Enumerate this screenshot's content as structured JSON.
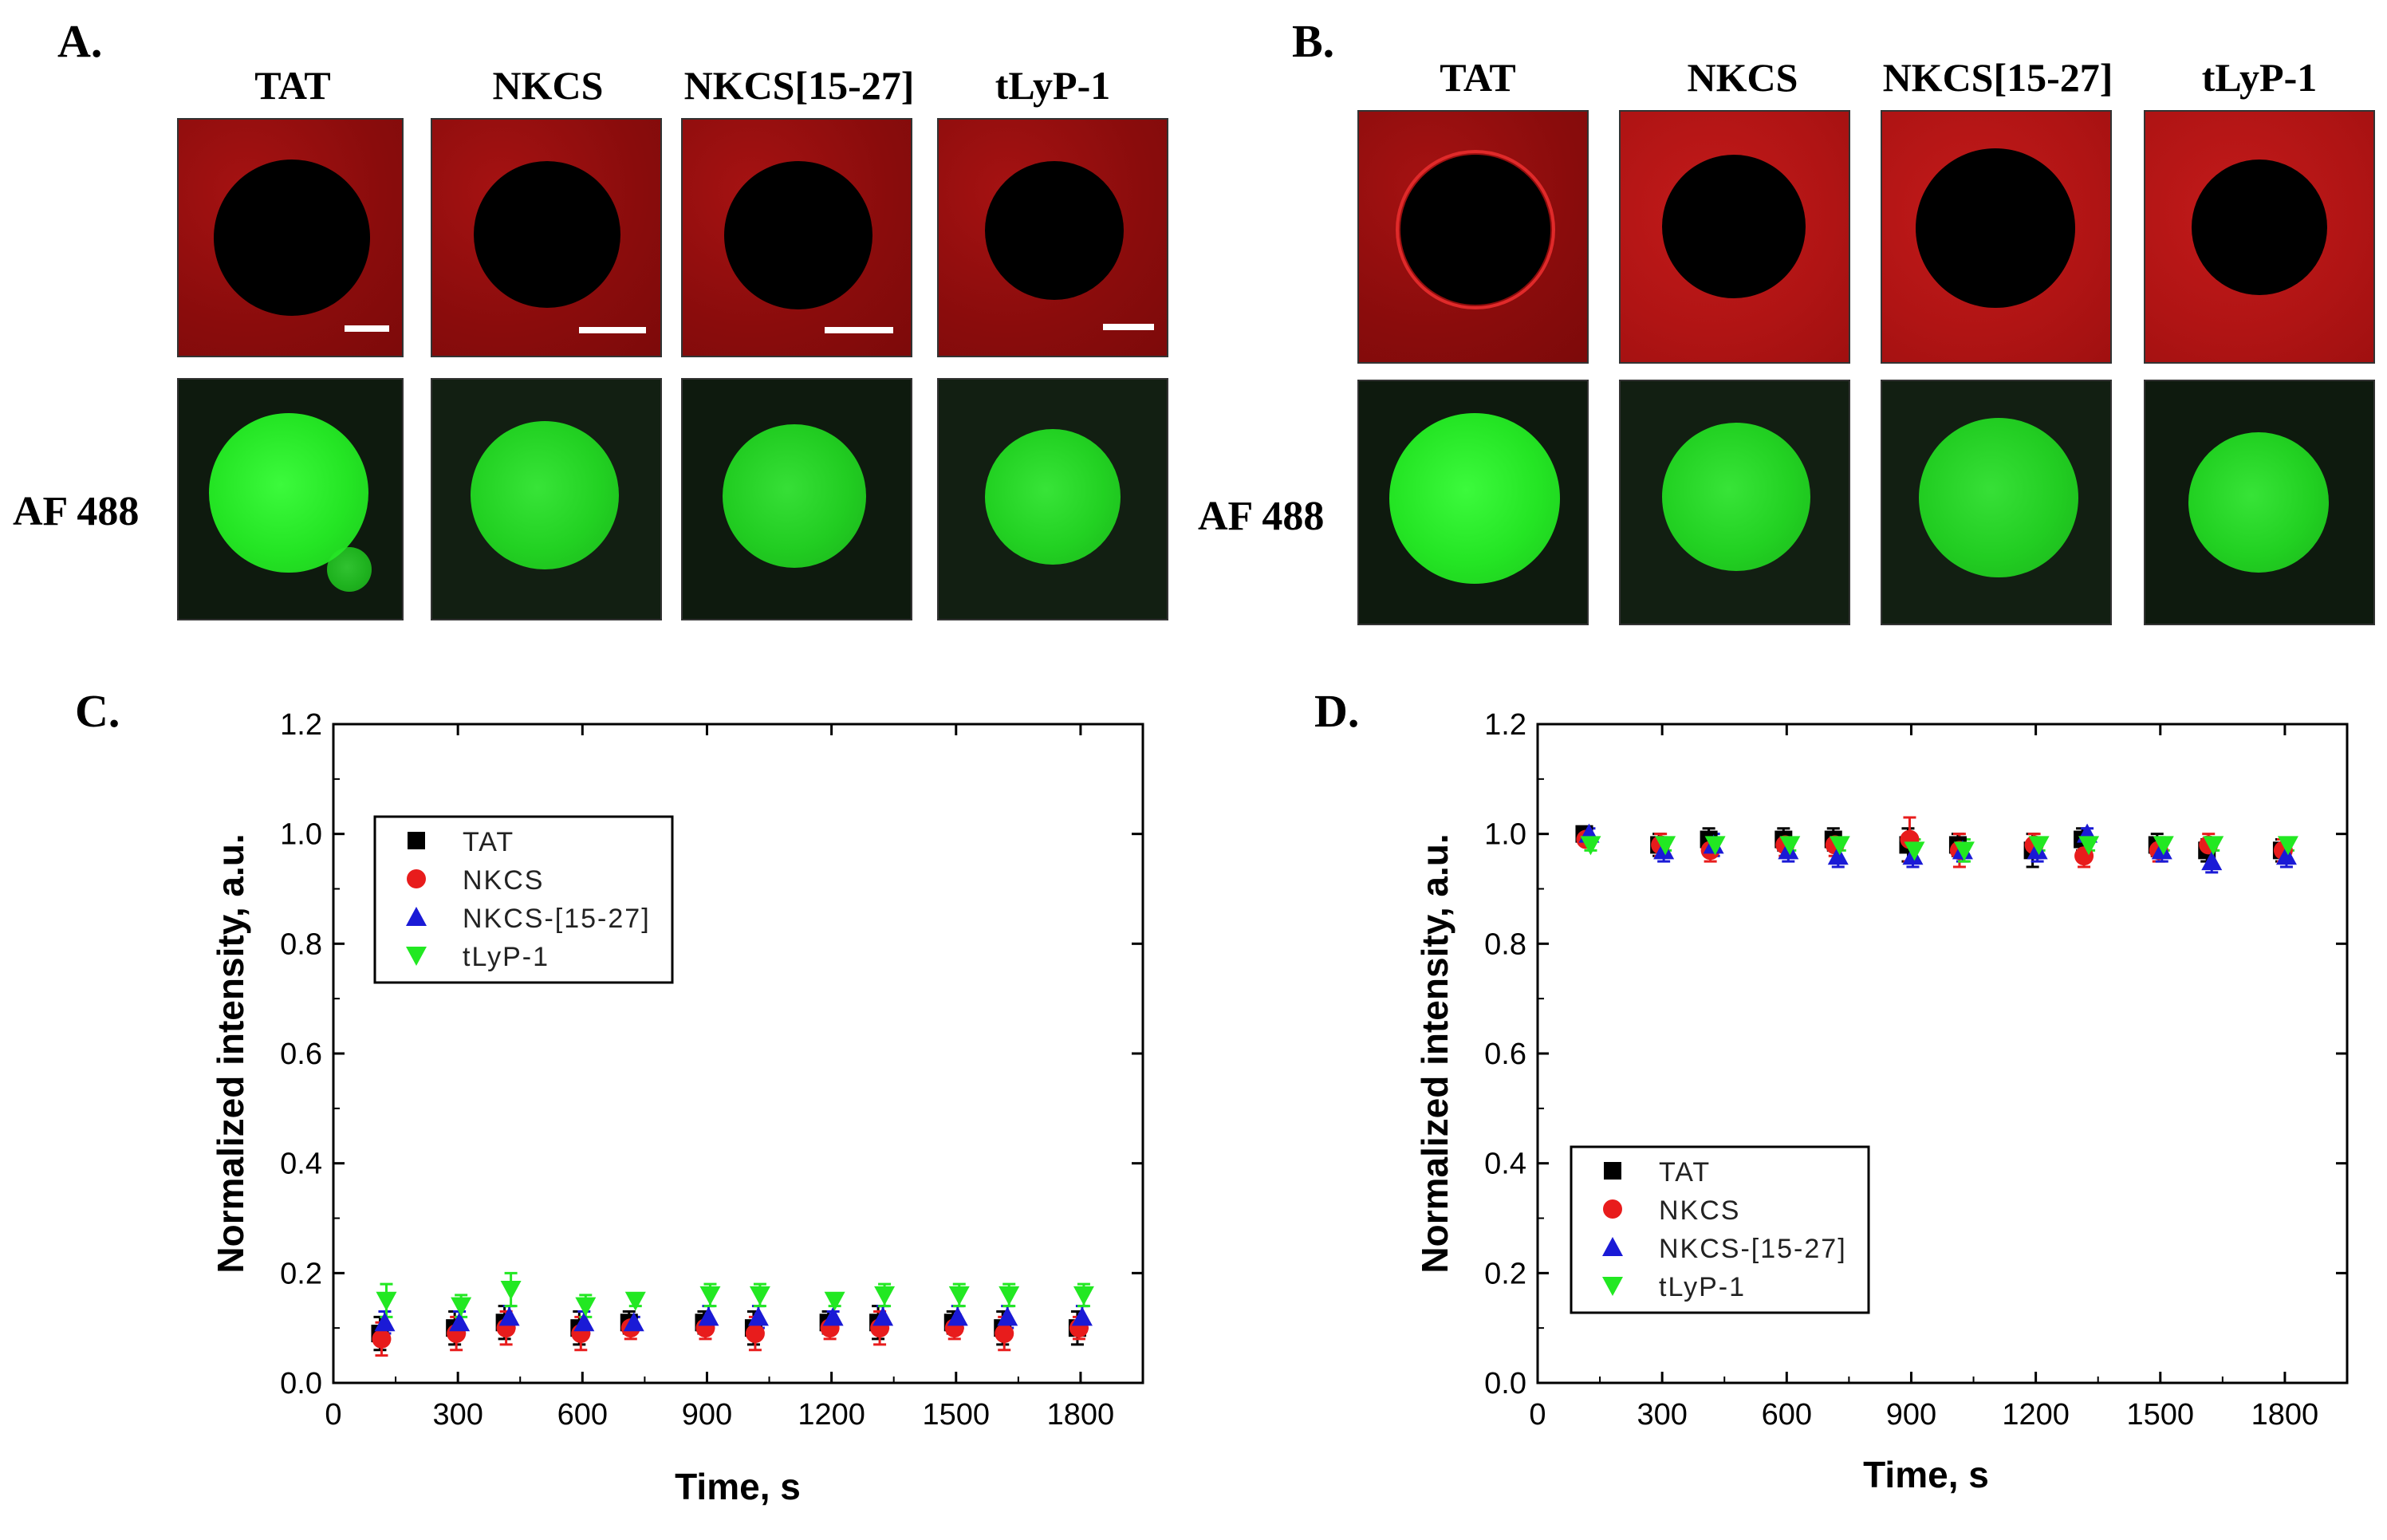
{
  "panel_labels": {
    "a": "A.",
    "b": "B.",
    "c": "C.",
    "d": "D."
  },
  "peptides": [
    "TAT",
    "NKCS",
    "NKCS[15-27]",
    "tLyP-1"
  ],
  "green_channel_label": "AF 488",
  "colors": {
    "red_channel": "#9b0f0f",
    "green_channel": "#27e527",
    "tat": "#000000",
    "nkcs": "#e81c1c",
    "nkcs1527": "#1a1ad6",
    "tlyp1": "#22e822"
  },
  "chart_data": [
    {
      "panel": "C.",
      "type": "scatter",
      "xlabel": "Time, s",
      "ylabel": "Normalized intensity, a.u.",
      "xlim": [
        0,
        1950
      ],
      "ylim": [
        0.0,
        1.2
      ],
      "xticks": [
        0,
        300,
        600,
        900,
        1200,
        1500,
        1800
      ],
      "yticks": [
        0.0,
        0.2,
        0.4,
        0.6,
        0.8,
        1.0,
        1.2
      ],
      "xtick_labels": [
        "0",
        "300",
        "600",
        "900",
        "1200",
        "1500",
        "1800"
      ],
      "ytick_labels": [
        "0.0",
        "0.2",
        "0.4",
        "0.6",
        "0.8",
        "1.0",
        "1.2"
      ],
      "legend_position": "upper-left",
      "x": [
        120,
        300,
        420,
        600,
        720,
        900,
        1020,
        1200,
        1320,
        1500,
        1620,
        1800
      ],
      "series": [
        {
          "name": "TAT",
          "marker": "square",
          "color": "#000000",
          "values": [
            0.09,
            0.1,
            0.11,
            0.1,
            0.11,
            0.11,
            0.1,
            0.11,
            0.11,
            0.11,
            0.1,
            0.1
          ],
          "errors": [
            0.03,
            0.03,
            0.03,
            0.03,
            0.02,
            0.02,
            0.03,
            0.02,
            0.03,
            0.02,
            0.03,
            0.03
          ]
        },
        {
          "name": "NKCS",
          "marker": "circle",
          "color": "#e81c1c",
          "values": [
            0.08,
            0.09,
            0.1,
            0.09,
            0.1,
            0.1,
            0.09,
            0.1,
            0.1,
            0.1,
            0.09,
            0.1
          ],
          "errors": [
            0.03,
            0.03,
            0.03,
            0.03,
            0.02,
            0.02,
            0.03,
            0.02,
            0.03,
            0.02,
            0.03,
            0.02
          ]
        },
        {
          "name": "NKCS-[15-27]",
          "marker": "triangle-up",
          "color": "#1a1ad6",
          "values": [
            0.11,
            0.11,
            0.12,
            0.11,
            0.11,
            0.12,
            0.12,
            0.12,
            0.12,
            0.12,
            0.12,
            0.12
          ],
          "errors": [
            0.02,
            0.02,
            0.02,
            0.02,
            0.01,
            0.02,
            0.02,
            0.01,
            0.02,
            0.02,
            0.02,
            0.02
          ]
        },
        {
          "name": "tLyP-1",
          "marker": "triangle-down",
          "color": "#22e822",
          "values": [
            0.15,
            0.14,
            0.17,
            0.14,
            0.15,
            0.16,
            0.16,
            0.15,
            0.16,
            0.16,
            0.16,
            0.16
          ],
          "errors": [
            0.03,
            0.02,
            0.03,
            0.02,
            0.01,
            0.02,
            0.02,
            0.01,
            0.02,
            0.02,
            0.02,
            0.02
          ]
        }
      ]
    },
    {
      "panel": "D.",
      "type": "scatter",
      "xlabel": "Time, s",
      "ylabel": "Normalized intensity, a.u.",
      "xlim": [
        0,
        1950
      ],
      "ylim": [
        0.0,
        1.2
      ],
      "xticks": [
        0,
        300,
        600,
        900,
        1200,
        1500,
        1800
      ],
      "yticks": [
        0.0,
        0.2,
        0.4,
        0.6,
        0.8,
        1.0,
        1.2
      ],
      "xtick_labels": [
        "0",
        "300",
        "600",
        "900",
        "1200",
        "1500",
        "1800"
      ],
      "ytick_labels": [
        "0.0",
        "0.2",
        "0.4",
        "0.6",
        "0.8",
        "1.0",
        "1.2"
      ],
      "legend_position": "lower-left",
      "x": [
        120,
        300,
        420,
        600,
        720,
        900,
        1020,
        1200,
        1320,
        1500,
        1620,
        1800
      ],
      "series": [
        {
          "name": "TAT",
          "marker": "square",
          "color": "#000000",
          "values": [
            1.0,
            0.98,
            0.99,
            0.99,
            0.99,
            0.98,
            0.98,
            0.97,
            0.99,
            0.98,
            0.97,
            0.97
          ],
          "errors": [
            0.01,
            0.02,
            0.02,
            0.02,
            0.02,
            0.03,
            0.02,
            0.03,
            0.02,
            0.02,
            0.02,
            0.02
          ]
        },
        {
          "name": "NKCS",
          "marker": "circle",
          "color": "#e81c1c",
          "values": [
            0.99,
            0.98,
            0.97,
            0.98,
            0.98,
            0.99,
            0.97,
            0.98,
            0.96,
            0.97,
            0.98,
            0.97
          ],
          "errors": [
            0.01,
            0.02,
            0.02,
            0.02,
            0.02,
            0.04,
            0.03,
            0.02,
            0.02,
            0.02,
            0.02,
            0.02
          ]
        },
        {
          "name": "NKCS-[15-27]",
          "marker": "triangle-up",
          "color": "#1a1ad6",
          "values": [
            1.0,
            0.97,
            0.98,
            0.97,
            0.96,
            0.96,
            0.97,
            0.97,
            1.0,
            0.97,
            0.95,
            0.96
          ],
          "errors": [
            0.01,
            0.02,
            0.02,
            0.02,
            0.02,
            0.02,
            0.02,
            0.02,
            0.01,
            0.02,
            0.02,
            0.02
          ]
        },
        {
          "name": "tLyP-1",
          "marker": "triangle-down",
          "color": "#22e822",
          "values": [
            0.98,
            0.98,
            0.98,
            0.98,
            0.98,
            0.97,
            0.97,
            0.98,
            0.98,
            0.98,
            0.98,
            0.98
          ],
          "errors": [
            0.01,
            0.01,
            0.01,
            0.01,
            0.01,
            0.02,
            0.02,
            0.01,
            0.01,
            0.01,
            0.01,
            0.01
          ]
        }
      ]
    }
  ]
}
